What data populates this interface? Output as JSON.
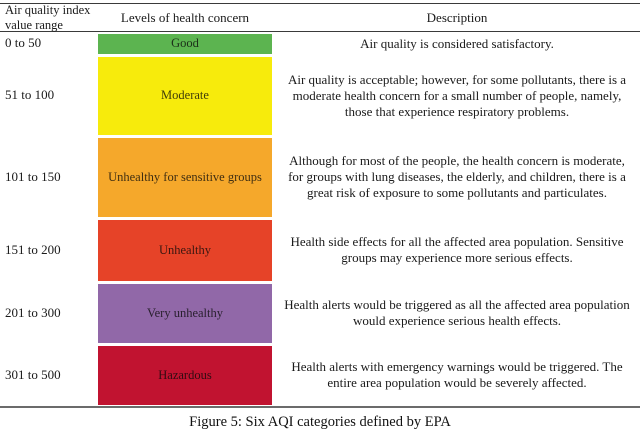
{
  "table": {
    "headers": [
      "Air quality index value range",
      "Levels of health concern",
      "Description"
    ],
    "rows": [
      {
        "range": "0 to 50",
        "level": "Good",
        "color": "#5cb450",
        "description": "Air quality is considered satisfactory."
      },
      {
        "range": "51 to 100",
        "level": "Moderate",
        "color": "#f7eb0c",
        "description": "Air quality is acceptable; however, for some pollutants, there is a moderate health concern for a small number of people, namely, those that experience respiratory problems."
      },
      {
        "range": "101 to 150",
        "level": "Unhealthy for sensitive groups",
        "color": "#f5a82b",
        "description": "Although for most of the people, the health concern is moderate, for groups with lung diseases, the elderly, and children, there is a great risk of exposure to some pollutants and particulates."
      },
      {
        "range": "151 to 200",
        "level": "Unhealthy",
        "color": "#e64328",
        "description": "Health side effects for all the affected area population. Sensitive groups may experience more serious effects."
      },
      {
        "range": "201 to 300",
        "level": "Very unhealthy",
        "color": "#9168a8",
        "description": "Health alerts would be triggered as all the affected area population would experience serious health effects."
      },
      {
        "range": "301 to 500",
        "level": "Hazardous",
        "color": "#c11330",
        "description": "Health alerts with emergency warnings would be triggered. The entire area population would be severely affected."
      }
    ]
  },
  "caption": "Figure 5: Six AQI categories defined by EPA"
}
